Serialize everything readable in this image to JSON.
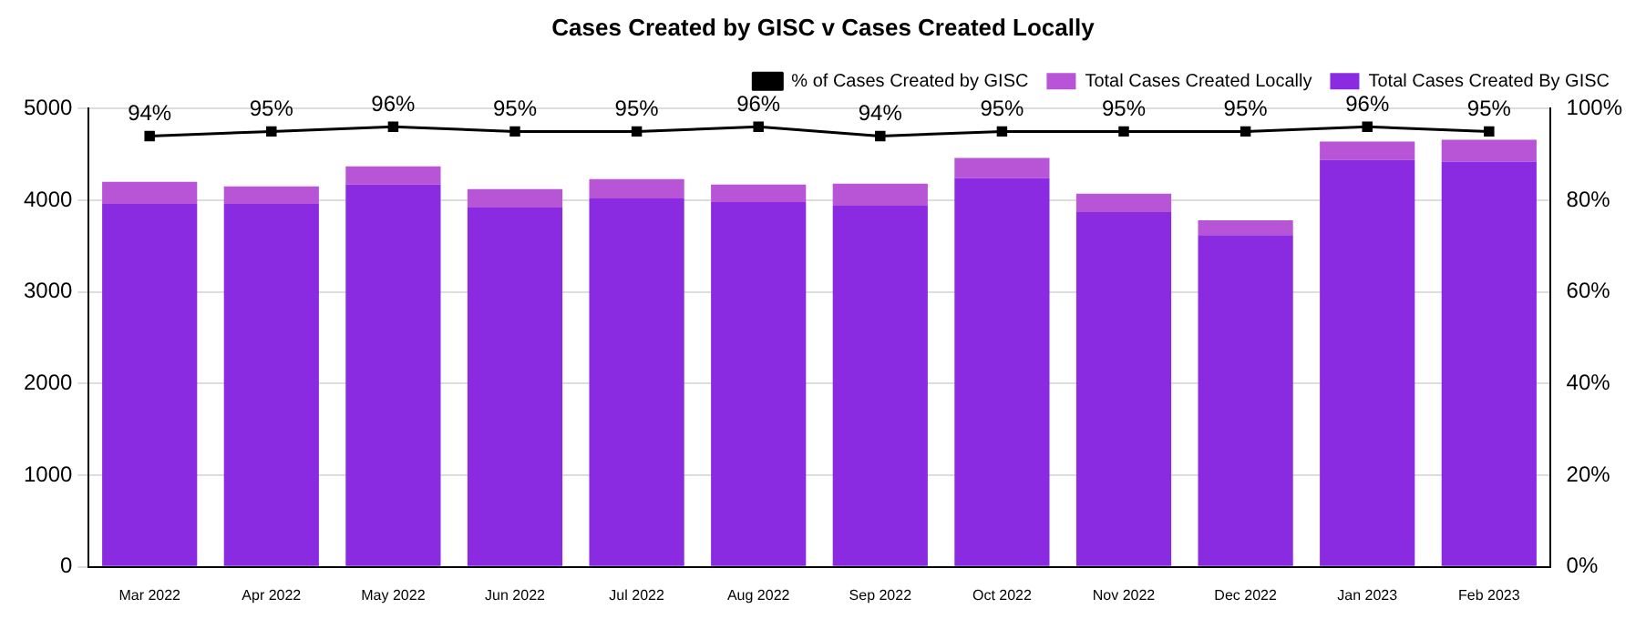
{
  "chart_data": {
    "type": "bar",
    "title": "Cases Created by GISC v Cases Created Locally",
    "stacked": true,
    "legend": "top right",
    "grid": "y",
    "categories": [
      "Mar 2022",
      "Apr 2022",
      "May 2022",
      "Jun 2022",
      "Jul 2022",
      "Aug 2022",
      "Sep 2022",
      "Oct 2022",
      "Nov 2022",
      "Dec 2022",
      "Jan 2023",
      "Feb 2023"
    ],
    "series": [
      {
        "name": "% of Cases Created by GISC",
        "type": "line",
        "axis": "y2",
        "color": "#000000",
        "marker": "square",
        "values": [
          94,
          95,
          96,
          95,
          95,
          96,
          94,
          95,
          95,
          95,
          96,
          95
        ],
        "value_labels": [
          "94%",
          "95%",
          "96%",
          "95%",
          "95%",
          "96%",
          "94%",
          "95%",
          "95%",
          "95%",
          "96%",
          "95%"
        ]
      },
      {
        "name": "Total Cases Created By GISC",
        "color": "#8a2be2",
        "values": [
          3960,
          3960,
          4170,
          3920,
          4020,
          3980,
          3940,
          4240,
          3870,
          3620,
          4440,
          4420
        ]
      },
      {
        "name": "Total Cases Created Locally",
        "color": "#b855d6",
        "values": [
          240,
          190,
          200,
          200,
          210,
          190,
          240,
          220,
          200,
          160,
          200,
          240
        ]
      }
    ],
    "ylim": [
      0,
      5000
    ],
    "yticks": [
      0,
      1000,
      2000,
      3000,
      4000,
      5000
    ],
    "y2lim": [
      0,
      100
    ],
    "y2ticks": [
      {
        "value": 0,
        "label": "0%"
      },
      {
        "value": 20,
        "label": "20%"
      },
      {
        "value": 40,
        "label": "40%"
      },
      {
        "value": 60,
        "label": "60%"
      },
      {
        "value": 80,
        "label": "80%"
      },
      {
        "value": 100,
        "label": "100%"
      }
    ]
  }
}
